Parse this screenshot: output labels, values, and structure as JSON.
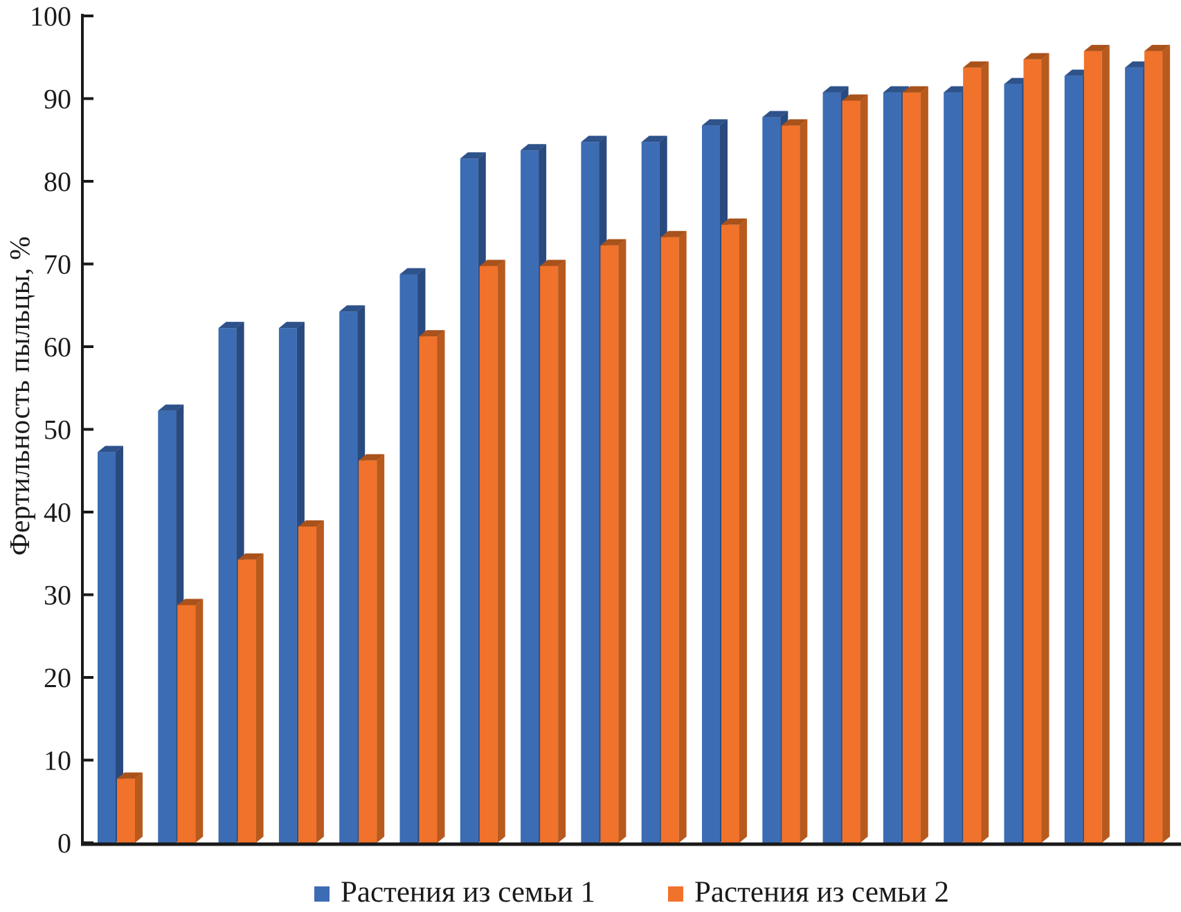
{
  "figure": {
    "background": "#ffffff",
    "text_color": "#1a1a1a",
    "axis_color": "#1a1a1a"
  },
  "chart_data": {
    "type": "bar",
    "style": "3d-clustered-column",
    "ylabel": "Фертильность пыльцы, %",
    "xlabel": "",
    "ylim": [
      0,
      100
    ],
    "yticks": [
      0,
      10,
      20,
      30,
      40,
      50,
      60,
      70,
      80,
      90,
      100
    ],
    "grid": false,
    "legend_position": "bottom",
    "n_groups": 18,
    "series": [
      {
        "name": "Растения из семьи 1",
        "color": "#3C6CB4",
        "color_top": "#2E528A",
        "color_side": "#294A7E",
        "values": [
          48,
          53,
          63,
          63,
          65,
          69.5,
          83.5,
          84.5,
          85.5,
          85.5,
          87.5,
          88.5,
          91.5,
          91.5,
          91.5,
          92.5,
          93.5,
          94.5
        ]
      },
      {
        "name": "Растения из семьи 2",
        "color": "#F1722B",
        "color_top": "#A9521B",
        "color_side": "#B85A1E",
        "values": [
          8.5,
          29.5,
          35,
          39,
          47,
          62,
          70.5,
          70.5,
          73,
          74,
          75.5,
          87.5,
          90.5,
          91.5,
          94.5,
          95.5,
          96.5,
          96.5
        ]
      }
    ]
  }
}
